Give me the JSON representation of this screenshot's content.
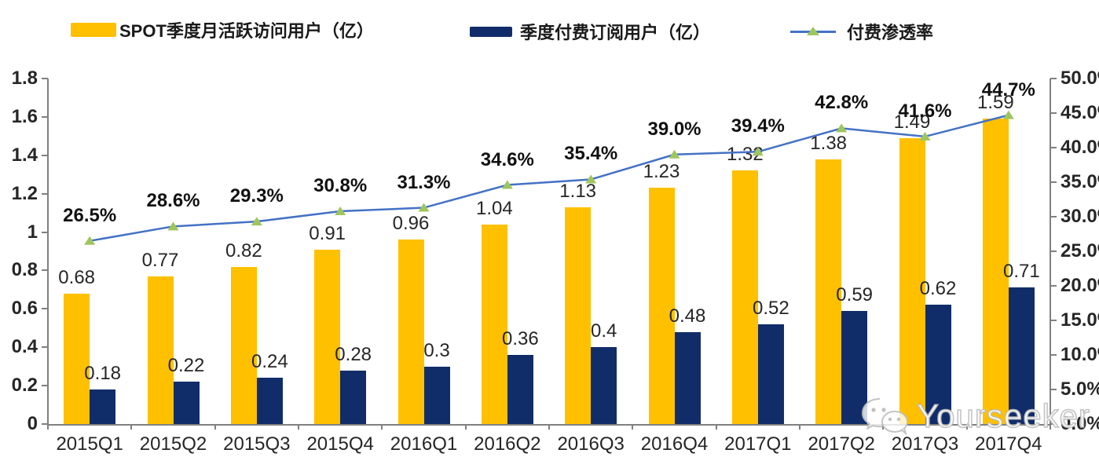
{
  "legend": {
    "items": [
      {
        "label": "SPOT季度月活跃访问用户（亿）",
        "color": "#FFC000",
        "type": "bar"
      },
      {
        "label": "季度付费订阅用户（亿）",
        "color": "#112D69",
        "type": "bar"
      },
      {
        "label": "付费渗透率",
        "line_color": "#4472C4",
        "marker_color": "#9FC55F",
        "marker": "triangle",
        "type": "line"
      }
    ]
  },
  "watermark": {
    "text": "Yourseeker",
    "icon": "wechat-icon"
  },
  "chart_data": {
    "type": "combo-bar-line",
    "categories": [
      "2015Q1",
      "2015Q2",
      "2015Q3",
      "2015Q4",
      "2016Q1",
      "2016Q2",
      "2016Q3",
      "2016Q4",
      "2017Q1",
      "2017Q2",
      "2017Q3",
      "2017Q4"
    ],
    "series": [
      {
        "name": "SPOT季度月活跃访问用户（亿）",
        "type": "bar",
        "yaxis": "left",
        "color": "#FFC000",
        "values": [
          0.68,
          0.77,
          0.82,
          0.91,
          0.96,
          1.04,
          1.13,
          1.23,
          1.32,
          1.38,
          1.49,
          1.59
        ]
      },
      {
        "name": "季度付费订阅用户（亿）",
        "type": "bar",
        "yaxis": "left",
        "color": "#112D69",
        "values": [
          0.18,
          0.22,
          0.24,
          0.28,
          0.3,
          0.36,
          0.4,
          0.48,
          0.52,
          0.59,
          0.62,
          0.71
        ]
      },
      {
        "name": "付费渗透率",
        "type": "line",
        "yaxis": "right",
        "color": "#4472C4",
        "marker_color": "#9FC55F",
        "values": [
          26.5,
          28.6,
          29.3,
          30.8,
          31.3,
          34.6,
          35.4,
          39.0,
          39.4,
          42.8,
          41.6,
          44.7
        ]
      }
    ],
    "left_axis": {
      "min": 0,
      "max": 1.8,
      "step": 0.2,
      "tick_labels": [
        "0",
        "0.2",
        "0.4",
        "0.6",
        "0.8",
        "1",
        "1.2",
        "1.4",
        "1.6",
        "1.8"
      ]
    },
    "right_axis": {
      "min": 0,
      "max": 50,
      "step": 5,
      "tick_labels": [
        "0.0%",
        "5.0%",
        "10.0%",
        "15.0%",
        "20.0%",
        "25.0%",
        "30.0%",
        "35.0%",
        "40.0%",
        "45.0%",
        "50.0%"
      ]
    },
    "grid": false,
    "legend_position": "top",
    "axis_color": "#808080",
    "label_color": "#262626"
  }
}
